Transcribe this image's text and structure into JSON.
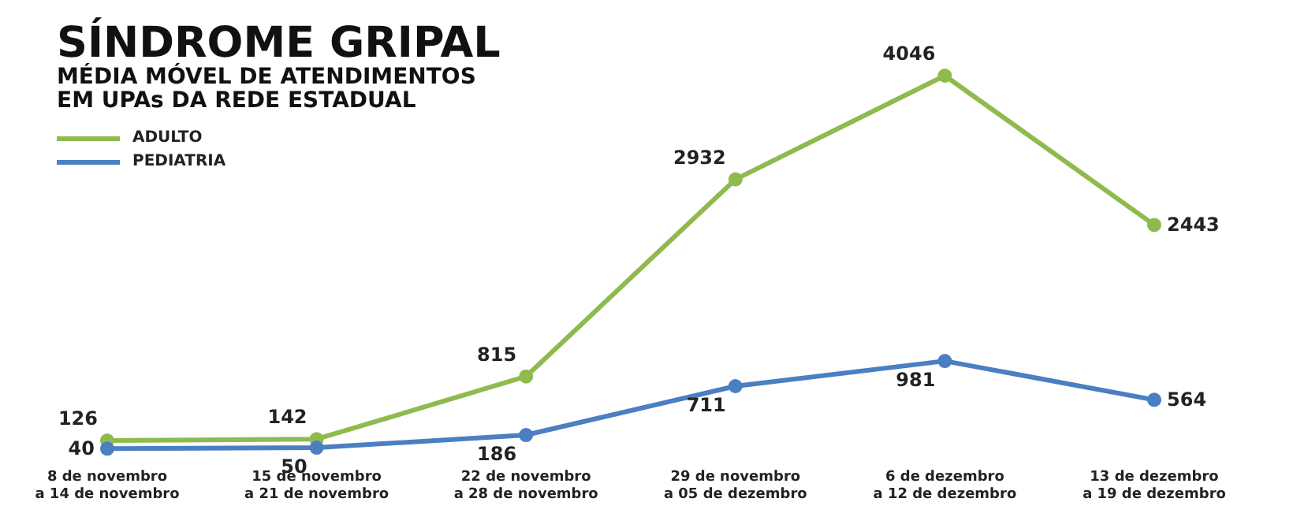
{
  "chart_data": {
    "type": "line",
    "title": "SÍNDROME GRIPAL",
    "subtitle": "MÉDIA MÓVEL DE ATENDIMENTOS\nEM UPAs DA REDE ESTADUAL",
    "categories": [
      "8 de novembro\na 14 de novembro",
      "15 de novembro\na 21 de novembro",
      "22 de novembro\na 28 de novembro",
      "29 de novembro\na 05 de dezembro",
      "6 de dezembro\na 12 de dezembro",
      "13 de dezembro\na 19 de dezembro"
    ],
    "series": [
      {
        "name": "ADULTO",
        "color": "#8fba4e",
        "values": [
          126,
          142,
          815,
          2932,
          4046,
          2443
        ]
      },
      {
        "name": "PEDIATRIA",
        "color": "#4a7fc1",
        "values": [
          40,
          50,
          186,
          711,
          981,
          564
        ]
      }
    ],
    "data_labels": true,
    "legend": "top left",
    "grid": false,
    "marker": "circle",
    "line_style": "solid"
  }
}
